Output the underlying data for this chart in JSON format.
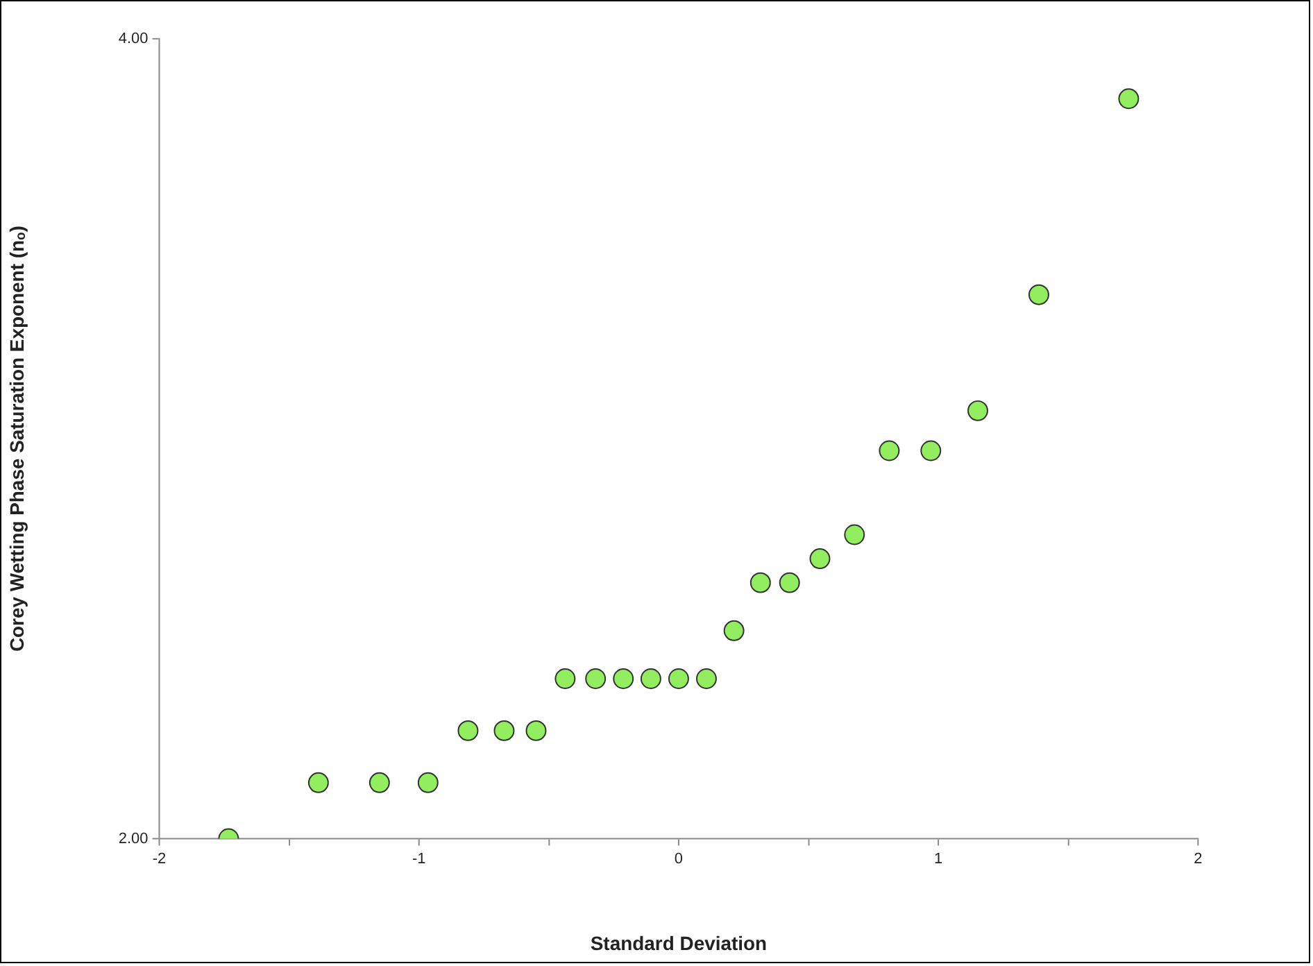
{
  "chart_data": {
    "type": "scatter",
    "xlabel": "Standard Deviation",
    "ylabel": "Corey Wetting Phase Saturation Exponent (nₒ)",
    "x": [
      -1.733,
      -1.387,
      -1.152,
      -0.965,
      -0.811,
      -0.672,
      -0.549,
      -0.437,
      -0.32,
      -0.213,
      -0.107,
      0.0,
      0.107,
      0.213,
      0.315,
      0.427,
      0.544,
      0.677,
      0.811,
      0.971,
      1.152,
      1.387,
      1.733
    ],
    "values": [
      2.0,
      2.14,
      2.14,
      2.14,
      2.27,
      2.27,
      2.27,
      2.4,
      2.4,
      2.4,
      2.4,
      2.4,
      2.4,
      2.52,
      2.64,
      2.64,
      2.7,
      2.76,
      2.97,
      2.97,
      3.07,
      3.36,
      3.85
    ],
    "color": "#92ee5e",
    "marker": "circle",
    "xlim": [
      -2,
      2
    ],
    "xticks": [
      -2,
      {
        "value": -1.5,
        "label": null
      },
      -1,
      {
        "value": -0.5,
        "label": null
      },
      0,
      {
        "value": 0.5,
        "label": null
      },
      1,
      {
        "value": 1.5,
        "label": null
      },
      2
    ],
    "ylim": [
      2,
      4
    ],
    "yticks": [
      {
        "value": 2,
        "label": "2.00"
      },
      {
        "value": 4,
        "label": "4.00"
      }
    ],
    "grid": false,
    "legend": false
  }
}
